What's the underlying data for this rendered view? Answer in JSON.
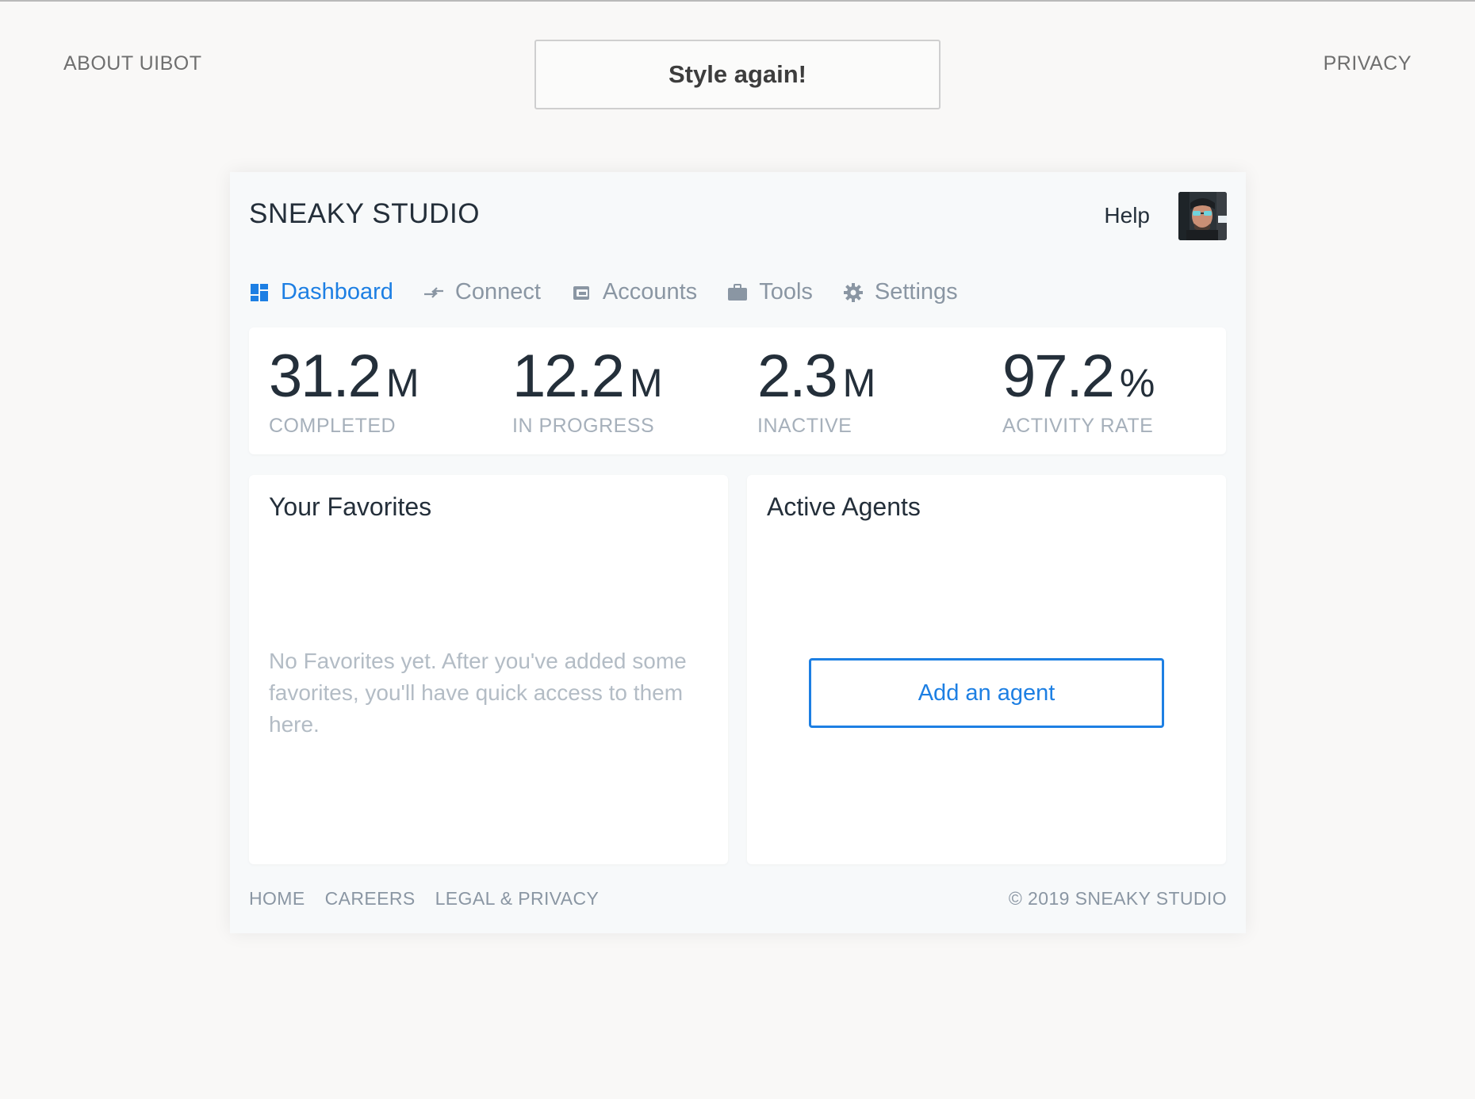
{
  "page": {
    "about_label": "ABOUT UIBOT",
    "privacy_label": "PRIVACY",
    "style_again_label": "Style again!"
  },
  "app": {
    "brand": "SNEAKY STUDIO",
    "help_label": "Help",
    "avatar_icon": "user-avatar-photo",
    "nav": [
      {
        "label": "Dashboard",
        "icon": "dashboard-icon",
        "active": true
      },
      {
        "label": "Connect",
        "icon": "connect-icon",
        "active": false
      },
      {
        "label": "Accounts",
        "icon": "wallet-icon",
        "active": false
      },
      {
        "label": "Tools",
        "icon": "briefcase-icon",
        "active": false
      },
      {
        "label": "Settings",
        "icon": "gear-icon",
        "active": false
      }
    ],
    "stats": [
      {
        "value": "31.2",
        "unit": "M",
        "label": "COMPLETED"
      },
      {
        "value": "12.2",
        "unit": "M",
        "label": "IN PROGRESS"
      },
      {
        "value": "2.3",
        "unit": "M",
        "label": "INACTIVE"
      },
      {
        "value": "97.2",
        "unit": "%",
        "label": "ACTIVITY RATE"
      }
    ],
    "favorites": {
      "title": "Your Favorites",
      "empty_text": "No Favorites yet. After you've added some favorites, you'll have quick access to them here."
    },
    "agents": {
      "title": "Active Agents",
      "add_label": "Add an agent"
    },
    "footer": {
      "links": [
        "HOME",
        "CAREERS",
        "LEGAL & PRIVACY"
      ],
      "copyright": "© 2019 SNEAKY STUDIO"
    }
  },
  "colors": {
    "accent": "#1d7fe3",
    "text_dark": "#242f3a",
    "text_muted": "#8a96a3",
    "label_muted": "#a6b0bb",
    "page_bg": "#f9f8f7",
    "card_bg": "#f7f9fa"
  }
}
